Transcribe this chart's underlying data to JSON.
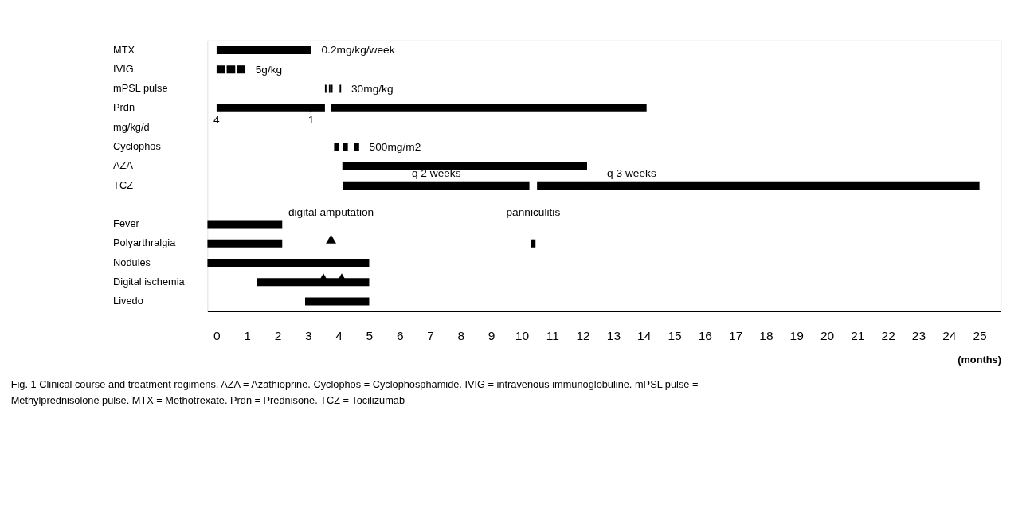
{
  "chart_data": {
    "type": "bar",
    "orientation": "horizontal",
    "xlabel": "(months)",
    "categories": [
      "MTX",
      "IVIG",
      "mPSL pulse",
      "Prdn",
      "mg/kg/d",
      "Cyclophos",
      "AZA",
      "TCZ",
      null,
      "Fever",
      "Polyarthralgia",
      "Nodules",
      "Digital ischemia",
      "Livedo"
    ],
    "xlim": [
      -0.3,
      25.7
    ],
    "xticks": [
      0,
      1,
      2,
      3,
      4,
      5,
      6,
      7,
      8,
      9,
      10,
      11,
      12,
      13,
      14,
      15,
      16,
      17,
      18,
      19,
      20,
      21,
      22,
      23,
      24,
      25
    ],
    "grid": false,
    "series": [
      {
        "color": "#000000",
        "base": [
          0,
          0,
          3.55,
          0,
          null,
          3.85,
          4.12,
          4.15,
          null,
          -0.3,
          -0.3,
          -0.3,
          1.33,
          2.9
        ],
        "values": [
          3.1,
          0.28,
          0.05,
          3.1,
          null,
          0.15,
          8.02,
          6.1,
          null,
          2.45,
          2.45,
          5.3,
          3.67,
          2.1
        ]
      },
      {
        "color": "#000000",
        "base": [
          null,
          0.33,
          3.68,
          3.05,
          null,
          4.15,
          null,
          10.5,
          null,
          null,
          10.3,
          null,
          null,
          null
        ],
        "values": [
          null,
          0.28,
          0.05,
          0.5,
          null,
          0.15,
          null,
          1.64,
          null,
          null,
          0.15,
          null,
          null,
          null
        ]
      },
      {
        "color": "#000000",
        "base": [
          null,
          0.66,
          3.75,
          3.76,
          null,
          4.5,
          null,
          12.14,
          null,
          null,
          null,
          null,
          null,
          null
        ],
        "values": [
          null,
          0.28,
          0.05,
          10.33,
          null,
          0.17,
          null,
          12.86,
          null,
          null,
          null,
          null,
          null,
          null
        ]
      },
      {
        "color": "#000000",
        "base": [
          null,
          null,
          4.03,
          null,
          null,
          null,
          null,
          null,
          null,
          null,
          null,
          null,
          null,
          null
        ],
        "values": [
          null,
          null,
          0.05,
          null,
          null,
          null,
          null,
          null,
          null,
          null,
          null,
          null,
          null,
          null
        ]
      },
      {
        "type": "scatter",
        "marker": "triangle",
        "color": "#000000",
        "values": [
          null,
          null,
          null,
          null,
          null,
          null,
          null,
          null,
          null,
          null,
          3.75,
          null,
          3.5,
          null
        ]
      },
      {
        "type": "scatter",
        "marker": "triangle",
        "color": "#000000",
        "values": [
          null,
          null,
          null,
          null,
          null,
          null,
          null,
          null,
          null,
          null,
          null,
          null,
          4.1,
          null
        ]
      }
    ],
    "annotations": [
      {
        "text": "0.2mg/kg/week",
        "x": 3.1,
        "y": "MTX"
      },
      {
        "text": "5g/kg",
        "x": 0.94,
        "y": "IVIG"
      },
      {
        "text": "30mg/kg",
        "x": 4.08,
        "y": "mPSL pulse"
      },
      {
        "text": "4",
        "x": 0,
        "y": "Prdn"
      },
      {
        "text": "1",
        "x": 3.1,
        "y": "Prdn"
      },
      {
        "text": "500mg/m2",
        "x": 4.67,
        "y": "Cyclophos"
      },
      {
        "text": "q 2 weeks",
        "x": 7.2,
        "y": "TCZ"
      },
      {
        "text": "q 3 weeks",
        "x": 13.6,
        "y": "TCZ"
      },
      {
        "text": "digital amputation",
        "x": 3.75,
        "y": "Polyarthralgia"
      },
      {
        "text": "panniculitis",
        "x": 10.375,
        "y": "Polyarthralgia"
      },
      "Fig. 1 Clinical course and treatment regimens. AZA = Azathioprine. Cyclophos = Cyclophosphamide. IVIG = intravenous immunoglobuline. mPSL pulse = Methylprednisolone pulse. MTX = Methotrexate. Prdn = Prednisone. TCZ = Tocilizumab"
    ]
  }
}
